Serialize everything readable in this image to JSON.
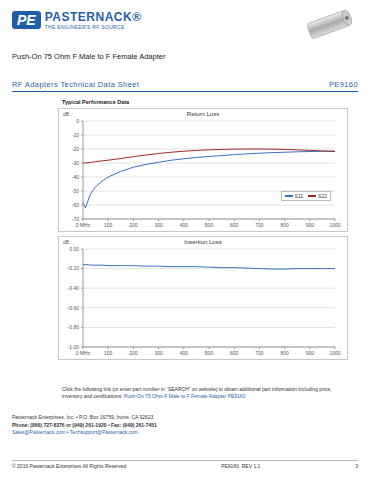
{
  "header": {
    "logo": "PE",
    "brand": "PASTERNACK®",
    "tagline": "THE ENGINEER'S RF SOURCE",
    "title": "Push-On 75 Ohm F Male to F Female Adapter",
    "section": "RF Adapters Technical Data Sheet",
    "part_number": "PE9160"
  },
  "performance_title": "Typical Performance Data",
  "chart_data": [
    {
      "type": "line",
      "title": "Return Loss",
      "y_label": "dB",
      "x": [
        0,
        10,
        20,
        30,
        50,
        75,
        100,
        150,
        200,
        250,
        300,
        350,
        400,
        450,
        500,
        550,
        600,
        650,
        700,
        750,
        800,
        850,
        900,
        950,
        1000
      ],
      "series": [
        {
          "name": "S11",
          "color": "#3a6fc4",
          "values": [
            -58,
            -62,
            -57,
            -52,
            -47,
            -43,
            -40,
            -36,
            -33,
            -31,
            -29.5,
            -28,
            -27,
            -26,
            -25.3,
            -24.7,
            -24,
            -23.5,
            -23,
            -22.6,
            -22.3,
            -22,
            -21.8,
            -21.6,
            -21.5
          ]
        },
        {
          "name": "S22",
          "color": "#a0282a",
          "values": [
            -30,
            -30,
            -29.8,
            -29.6,
            -29,
            -28.5,
            -28,
            -26.8,
            -25.5,
            -24.3,
            -23.2,
            -22.3,
            -21.6,
            -21,
            -20.6,
            -20.3,
            -20.1,
            -20,
            -20,
            -20.1,
            -20.3,
            -20.6,
            -21,
            -21.4,
            -21.8
          ]
        }
      ],
      "xlim": [
        0,
        1000
      ],
      "xticks": [
        {
          "value": 0,
          "label": "0 MHz"
        },
        100,
        200,
        300,
        400,
        500,
        600,
        700,
        800,
        900,
        1000
      ],
      "ylim": [
        -70,
        0
      ],
      "yticks": [
        0,
        -10,
        -20,
        -30,
        -40,
        -50,
        -60,
        -70
      ],
      "grid": true,
      "legend": "lower right"
    },
    {
      "type": "line",
      "title": "Insertion Loss",
      "y_label": "dB",
      "x": [
        0,
        10,
        20,
        30,
        50,
        75,
        100,
        150,
        200,
        250,
        300,
        350,
        400,
        450,
        500,
        550,
        600,
        650,
        700,
        750,
        800,
        850,
        900,
        950,
        1000
      ],
      "series": [
        {
          "color": "#3a6fc4",
          "values": [
            -0.16,
            -0.16,
            -0.16,
            -0.165,
            -0.165,
            -0.165,
            -0.17,
            -0.17,
            -0.17,
            -0.175,
            -0.175,
            -0.18,
            -0.18,
            -0.18,
            -0.185,
            -0.19,
            -0.19,
            -0.195,
            -0.2,
            -0.205,
            -0.205,
            -0.2,
            -0.2,
            -0.2,
            -0.2
          ]
        }
      ],
      "xlim": [
        0,
        1000
      ],
      "xticks": [
        {
          "value": 0,
          "label": "0 MHz"
        },
        100,
        200,
        300,
        400,
        500,
        600,
        700,
        800,
        900,
        1000
      ],
      "ylim": [
        -1,
        0
      ],
      "yticks": [
        {
          "value": 0,
          "label": "0.00"
        },
        {
          "value": -0.2,
          "label": "-0.20"
        },
        {
          "value": -0.4,
          "label": "-0.40"
        },
        {
          "value": -0.6,
          "label": "-0.60"
        },
        {
          "value": -0.8,
          "label": "-0.80"
        },
        {
          "value": -1,
          "label": "-1.00"
        }
      ],
      "grid": true
    }
  ],
  "link_text": {
    "text": "Click the following link (or enter part number in “SEARCH” on website) to obtain additional part information including price, inventory and certifications:",
    "link": "Push-On 75 Ohm F Male to F Female Adapter PE9160"
  },
  "footer": {
    "address": "Pasternack Enterprises, Inc. • P.O. Box 16759, Irvine, CA 92623",
    "phone": "Phone: (866) 727-8376 or (949) 261-1920 • Fax: (949) 261-7451",
    "email": "Sales@Pasternack.com • Techsupport@Pasternack.com",
    "copyright": "© 2016 Pasternack Enterprises All Rights Reserved",
    "revision": "PE9160  REV 1.1",
    "page": "3"
  }
}
